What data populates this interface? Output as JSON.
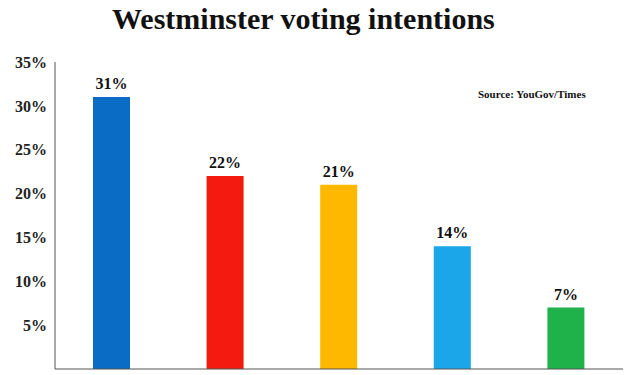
{
  "chart_data": {
    "type": "bar",
    "title": "Westminster voting intentions",
    "annotations": [
      "Source: YouGov/Times"
    ],
    "categories": [
      null,
      null,
      null,
      null,
      null
    ],
    "values": [
      31,
      22,
      21,
      14,
      7
    ],
    "value_labels": [
      "31%",
      "22%",
      "21%",
      "14%",
      "7%"
    ],
    "data_labels": true,
    "colors": [
      "#0a6cc4",
      "#f51a10",
      "#ffb800",
      "#1aa6e8",
      "#20b24a"
    ],
    "ylim": [
      0,
      35
    ],
    "yticks": [
      {
        "value": 5,
        "label": "5%"
      },
      {
        "value": 10,
        "label": "10%"
      },
      {
        "value": 15,
        "label": "15%"
      },
      {
        "value": 20,
        "label": "20%"
      },
      {
        "value": 25,
        "label": "25%"
      },
      {
        "value": 30,
        "label": "30%"
      },
      {
        "value": 35,
        "label": "35%"
      }
    ],
    "grid": false,
    "tick_labels": "y"
  }
}
